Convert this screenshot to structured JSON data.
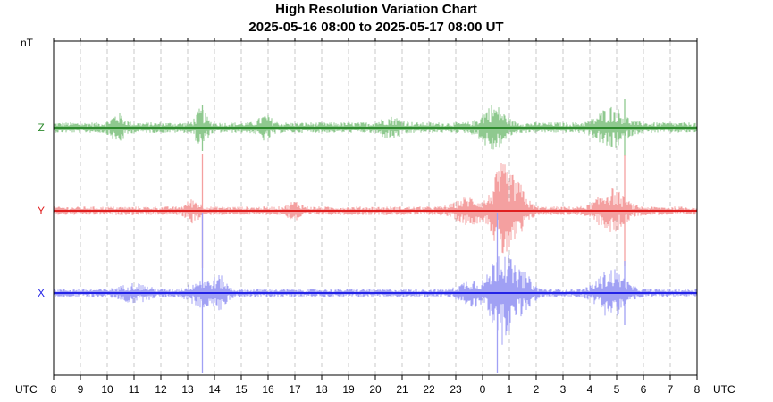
{
  "chart_data": {
    "type": "line",
    "title": "High Resolution Variation Chart",
    "subtitle": "2025-05-16 08:00 to 2025-05-17 08:00 UT",
    "ylabel": "nT",
    "xlabel_left": "UTC",
    "xlabel_right": "UTC",
    "x_ticks": [
      "8",
      "9",
      "10",
      "11",
      "12",
      "13",
      "14",
      "15",
      "16",
      "17",
      "18",
      "19",
      "20",
      "21",
      "22",
      "23",
      "0",
      "1",
      "2",
      "3",
      "4",
      "5",
      "6",
      "7",
      "8"
    ],
    "grid": true,
    "series": [
      {
        "name": "Z",
        "color": "#2e8b2e",
        "fill_color": "#8fc98f",
        "baseline_noise": 5,
        "activity": [
          {
            "hour": 10.4,
            "width": 0.3,
            "amp": 10
          },
          {
            "hour": 13.5,
            "width": 0.25,
            "amp": 14
          },
          {
            "hour": 15.9,
            "width": 0.3,
            "amp": 8
          },
          {
            "hour": 20.6,
            "width": 0.5,
            "amp": 6
          },
          {
            "hour": 24.4,
            "width": 0.5,
            "amp": 18
          },
          {
            "hour": 28.8,
            "width": 0.6,
            "amp": 16
          }
        ],
        "spikes": [
          {
            "hour": 13.55,
            "amp": 26
          },
          {
            "hour": 29.3,
            "amp": 32
          }
        ]
      },
      {
        "name": "Y",
        "color": "#e02020",
        "fill_color": "#f4a0a0",
        "baseline_noise": 4,
        "activity": [
          {
            "hour": 13.2,
            "width": 0.3,
            "amp": 8
          },
          {
            "hour": 17.0,
            "width": 0.3,
            "amp": 6
          },
          {
            "hour": 23.5,
            "width": 0.6,
            "amp": 10
          },
          {
            "hour": 24.7,
            "width": 0.4,
            "amp": 38
          },
          {
            "hour": 25.3,
            "width": 0.4,
            "amp": 22
          },
          {
            "hour": 28.8,
            "width": 0.6,
            "amp": 18
          }
        ],
        "spikes": [
          {
            "hour": 13.55,
            "amp": 64
          },
          {
            "hour": 29.3,
            "amp": 62
          }
        ]
      },
      {
        "name": "X",
        "color": "#2222e6",
        "fill_color": "#a0a0f4",
        "baseline_noise": 4,
        "activity": [
          {
            "hour": 11.0,
            "width": 0.6,
            "amp": 6
          },
          {
            "hour": 13.5,
            "width": 0.5,
            "amp": 10
          },
          {
            "hour": 14.2,
            "width": 0.3,
            "amp": 12
          },
          {
            "hour": 23.6,
            "width": 0.5,
            "amp": 10
          },
          {
            "hour": 24.7,
            "width": 0.45,
            "amp": 44
          },
          {
            "hour": 25.5,
            "width": 0.4,
            "amp": 16
          },
          {
            "hour": 28.8,
            "width": 0.6,
            "amp": 20
          }
        ],
        "spikes": [
          {
            "hour": 13.55,
            "amp": 90
          },
          {
            "hour": 24.55,
            "amp": 90
          },
          {
            "hour": 29.3,
            "amp": 36
          }
        ]
      }
    ]
  }
}
